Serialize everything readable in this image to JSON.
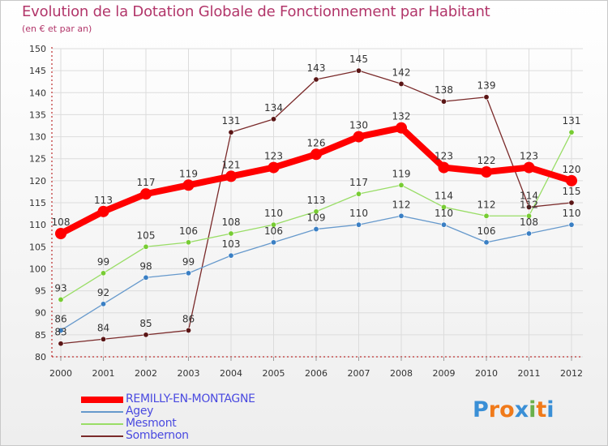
{
  "header": {
    "title": "Evolution de la Dotation Globale de Fonctionnement par Habitant",
    "subtitle": "(en € et par an)"
  },
  "colors": {
    "title": "#b2366a",
    "legend_text": "#4a4ae0",
    "axis": "#b00000",
    "grid": "#dcdcdc"
  },
  "chart_data": {
    "type": "line",
    "title": "Evolution de la Dotation Globale de Fonctionnement par Habitant",
    "subtitle": "(en € et par an)",
    "xlabel": "",
    "ylabel": "",
    "ylim": [
      80,
      150
    ],
    "yticks": [
      80,
      85,
      90,
      95,
      100,
      105,
      110,
      115,
      120,
      125,
      130,
      135,
      140,
      145,
      150
    ],
    "grid": true,
    "categories": [
      "2000",
      "2001",
      "2002",
      "2003",
      "2004",
      "2005",
      "2006",
      "2007",
      "2008",
      "2009",
      "2010",
      "2011",
      "2012"
    ],
    "series": [
      {
        "name": "REMILLY-EN-MONTAGNE",
        "color": "#ff0000",
        "values": [
          108,
          113,
          117,
          119,
          121,
          123,
          126,
          130,
          132,
          123,
          122,
          123,
          120
        ]
      },
      {
        "name": "Agey",
        "color": "#6699cc",
        "values": [
          86,
          92,
          98,
          99,
          103,
          106,
          109,
          110,
          112,
          110,
          106,
          108,
          110
        ]
      },
      {
        "name": "Mesmont",
        "color": "#99dd66",
        "values": [
          93,
          99,
          105,
          106,
          108,
          110,
          113,
          117,
          119,
          114,
          112,
          112,
          131
        ]
      },
      {
        "name": "Sombernon",
        "color": "#7a2a2a",
        "values": [
          83,
          84,
          85,
          86,
          131,
          134,
          143,
          145,
          142,
          138,
          139,
          114,
          115
        ]
      }
    ]
  },
  "logo": {
    "letters": [
      "P",
      "r",
      "o",
      "x",
      "i",
      "t",
      "i"
    ],
    "colors": [
      "#3a8fd6",
      "#f07a1a",
      "#f07a1a",
      "#3a8fd6",
      "#6ab04c",
      "#f07a1a",
      "#3a8fd6"
    ]
  }
}
